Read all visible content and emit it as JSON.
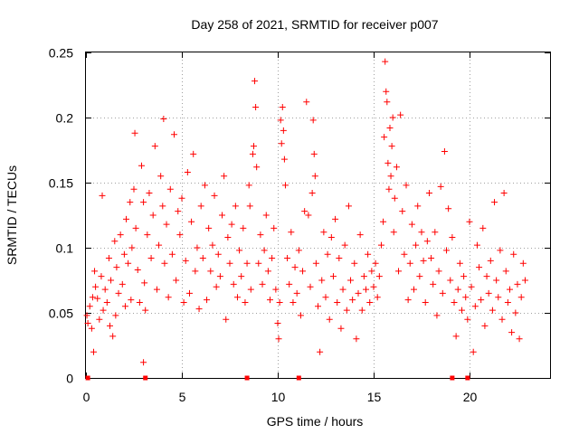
{
  "chart_data": {
    "type": "scatter",
    "title": "Day 258 of 2021, SRMTID for receiver p007",
    "xlabel": "GPS time / hours",
    "ylabel": "SRMTID / TECUs",
    "xlim": [
      0,
      24.2
    ],
    "ylim": [
      0,
      0.25
    ],
    "xticks": [
      0,
      5,
      10,
      15,
      20
    ],
    "xtick_labels": [
      "0",
      "5",
      "10",
      "15",
      "20"
    ],
    "yticks": [
      0,
      0.05,
      0.1,
      0.15,
      0.2,
      0.25
    ],
    "ytick_labels": [
      "0",
      "0.05",
      "0.1",
      "0.15",
      "0.2",
      "0.25"
    ],
    "grid": true,
    "marker": "plus",
    "color": "#ff0000",
    "series": [
      {
        "name": "SRMTID",
        "note": "dense scatter of 5-minute samples; representative points read from the plot",
        "points": [
          [
            0.05,
            0.048
          ],
          [
            0.1,
            0.042
          ],
          [
            0.2,
            0.055
          ],
          [
            0.3,
            0.038
          ],
          [
            0.35,
            0.062
          ],
          [
            0.4,
            0.02
          ],
          [
            0.45,
            0.082
          ],
          [
            0.5,
            0.07
          ],
          [
            0.6,
            0.061
          ],
          [
            0.7,
            0.045
          ],
          [
            0.8,
            0.078
          ],
          [
            0.85,
            0.14
          ],
          [
            0.9,
            0.052
          ],
          [
            1.0,
            0.068
          ],
          [
            1.1,
            0.058
          ],
          [
            1.2,
            0.092
          ],
          [
            1.25,
            0.04
          ],
          [
            1.3,
            0.075
          ],
          [
            1.4,
            0.032
          ],
          [
            1.5,
            0.105
          ],
          [
            1.55,
            0.048
          ],
          [
            1.6,
            0.085
          ],
          [
            1.7,
            0.065
          ],
          [
            1.8,
            0.11
          ],
          [
            1.9,
            0.072
          ],
          [
            2.0,
            0.095
          ],
          [
            2.05,
            0.055
          ],
          [
            2.1,
            0.122
          ],
          [
            2.2,
            0.088
          ],
          [
            2.3,
            0.135
          ],
          [
            2.35,
            0.06
          ],
          [
            2.4,
            0.1
          ],
          [
            2.5,
            0.145
          ],
          [
            2.55,
            0.188
          ],
          [
            2.6,
            0.115
          ],
          [
            2.7,
            0.083
          ],
          [
            2.8,
            0.058
          ],
          [
            2.9,
            0.163
          ],
          [
            3.0,
            0.135
          ],
          [
            3.0,
            0.012
          ],
          [
            3.05,
            0.073
          ],
          [
            3.1,
            0.052
          ],
          [
            3.2,
            0.11
          ],
          [
            3.3,
            0.142
          ],
          [
            3.4,
            0.092
          ],
          [
            3.5,
            0.125
          ],
          [
            3.6,
            0.178
          ],
          [
            3.7,
            0.068
          ],
          [
            3.8,
            0.102
          ],
          [
            3.9,
            0.155
          ],
          [
            4.0,
            0.132
          ],
          [
            4.05,
            0.199
          ],
          [
            4.1,
            0.088
          ],
          [
            4.2,
            0.118
          ],
          [
            4.3,
            0.062
          ],
          [
            4.4,
            0.145
          ],
          [
            4.5,
            0.095
          ],
          [
            4.6,
            0.187
          ],
          [
            4.7,
            0.075
          ],
          [
            4.8,
            0.128
          ],
          [
            4.9,
            0.11
          ],
          [
            5.0,
            0.138
          ],
          [
            5.1,
            0.058
          ],
          [
            5.2,
            0.09
          ],
          [
            5.3,
            0.158
          ],
          [
            5.4,
            0.065
          ],
          [
            5.5,
            0.12
          ],
          [
            5.6,
            0.172
          ],
          [
            5.7,
            0.082
          ],
          [
            5.8,
            0.1
          ],
          [
            5.9,
            0.053
          ],
          [
            6.0,
            0.132
          ],
          [
            6.1,
            0.092
          ],
          [
            6.2,
            0.148
          ],
          [
            6.3,
            0.06
          ],
          [
            6.4,
            0.115
          ],
          [
            6.5,
            0.082
          ],
          [
            6.6,
            0.102
          ],
          [
            6.7,
            0.14
          ],
          [
            6.8,
            0.07
          ],
          [
            6.9,
            0.095
          ],
          [
            7.0,
            0.078
          ],
          [
            7.1,
            0.125
          ],
          [
            7.2,
            0.155
          ],
          [
            7.3,
            0.045
          ],
          [
            7.4,
            0.108
          ],
          [
            7.5,
            0.088
          ],
          [
            7.6,
            0.118
          ],
          [
            7.7,
            0.072
          ],
          [
            7.8,
            0.132
          ],
          [
            7.9,
            0.062
          ],
          [
            8.0,
            0.098
          ],
          [
            8.1,
            0.078
          ],
          [
            8.2,
            0.115
          ],
          [
            8.3,
            0.058
          ],
          [
            8.4,
            0.088
          ],
          [
            8.5,
            0.148
          ],
          [
            8.55,
            0.132
          ],
          [
            8.6,
            0.068
          ],
          [
            8.7,
            0.172
          ],
          [
            8.75,
            0.178
          ],
          [
            8.8,
            0.228
          ],
          [
            8.85,
            0.208
          ],
          [
            8.9,
            0.162
          ],
          [
            9.0,
            0.088
          ],
          [
            9.1,
            0.11
          ],
          [
            9.2,
            0.072
          ],
          [
            9.3,
            0.098
          ],
          [
            9.4,
            0.125
          ],
          [
            9.5,
            0.082
          ],
          [
            9.6,
            0.06
          ],
          [
            9.7,
            0.092
          ],
          [
            9.8,
            0.115
          ],
          [
            9.9,
            0.068
          ],
          [
            10.0,
            0.042
          ],
          [
            10.05,
            0.03
          ],
          [
            10.1,
            0.058
          ],
          [
            10.15,
            0.198
          ],
          [
            10.2,
            0.18
          ],
          [
            10.25,
            0.208
          ],
          [
            10.3,
            0.19
          ],
          [
            10.35,
            0.168
          ],
          [
            10.4,
            0.148
          ],
          [
            10.5,
            0.092
          ],
          [
            10.6,
            0.072
          ],
          [
            10.7,
            0.112
          ],
          [
            10.8,
            0.058
          ],
          [
            10.9,
            0.085
          ],
          [
            11.0,
            0.065
          ],
          [
            11.1,
            0.098
          ],
          [
            11.2,
            0.048
          ],
          [
            11.3,
            0.082
          ],
          [
            11.4,
            0.128
          ],
          [
            11.5,
            0.212
          ],
          [
            11.6,
            0.125
          ],
          [
            11.7,
            0.07
          ],
          [
            11.8,
            0.142
          ],
          [
            11.85,
            0.198
          ],
          [
            11.9,
            0.172
          ],
          [
            11.95,
            0.155
          ],
          [
            12.0,
            0.088
          ],
          [
            12.1,
            0.055
          ],
          [
            12.2,
            0.02
          ],
          [
            12.3,
            0.075
          ],
          [
            12.4,
            0.112
          ],
          [
            12.5,
            0.062
          ],
          [
            12.6,
            0.095
          ],
          [
            12.7,
            0.045
          ],
          [
            12.8,
            0.108
          ],
          [
            12.9,
            0.078
          ],
          [
            13.0,
            0.122
          ],
          [
            13.1,
            0.058
          ],
          [
            13.2,
            0.092
          ],
          [
            13.3,
            0.038
          ],
          [
            13.4,
            0.068
          ],
          [
            13.5,
            0.102
          ],
          [
            13.6,
            0.052
          ],
          [
            13.7,
            0.132
          ],
          [
            13.8,
            0.075
          ],
          [
            13.9,
            0.06
          ],
          [
            14.0,
            0.088
          ],
          [
            14.1,
            0.03
          ],
          [
            14.2,
            0.065
          ],
          [
            14.3,
            0.11
          ],
          [
            14.4,
            0.052
          ],
          [
            14.5,
            0.078
          ],
          [
            14.6,
            0.068
          ],
          [
            14.7,
            0.095
          ],
          [
            14.8,
            0.058
          ],
          [
            14.9,
            0.082
          ],
          [
            15.0,
            0.07
          ],
          [
            15.1,
            0.088
          ],
          [
            15.2,
            0.062
          ],
          [
            15.3,
            0.078
          ],
          [
            15.4,
            0.102
          ],
          [
            15.5,
            0.12
          ],
          [
            15.55,
            0.185
          ],
          [
            15.6,
            0.243
          ],
          [
            15.65,
            0.22
          ],
          [
            15.7,
            0.212
          ],
          [
            15.75,
            0.165
          ],
          [
            15.8,
            0.145
          ],
          [
            15.85,
            0.192
          ],
          [
            15.9,
            0.155
          ],
          [
            15.95,
            0.178
          ],
          [
            16.0,
            0.2
          ],
          [
            16.05,
            0.112
          ],
          [
            16.1,
            0.138
          ],
          [
            16.2,
            0.162
          ],
          [
            16.3,
            0.082
          ],
          [
            16.4,
            0.202
          ],
          [
            16.5,
            0.128
          ],
          [
            16.6,
            0.095
          ],
          [
            16.7,
            0.148
          ],
          [
            16.8,
            0.06
          ],
          [
            16.9,
            0.088
          ],
          [
            17.0,
            0.118
          ],
          [
            17.1,
            0.068
          ],
          [
            17.2,
            0.102
          ],
          [
            17.3,
            0.132
          ],
          [
            17.4,
            0.078
          ],
          [
            17.5,
            0.112
          ],
          [
            17.6,
            0.09
          ],
          [
            17.7,
            0.058
          ],
          [
            17.8,
            0.105
          ],
          [
            17.9,
            0.142
          ],
          [
            18.0,
            0.092
          ],
          [
            18.1,
            0.072
          ],
          [
            18.2,
            0.112
          ],
          [
            18.3,
            0.048
          ],
          [
            18.4,
            0.082
          ],
          [
            18.5,
            0.147
          ],
          [
            18.6,
            0.065
          ],
          [
            18.7,
            0.174
          ],
          [
            18.8,
            0.098
          ],
          [
            18.9,
            0.13
          ],
          [
            19.0,
            0.075
          ],
          [
            19.1,
            0.108
          ],
          [
            19.2,
            0.058
          ],
          [
            19.3,
            0.032
          ],
          [
            19.4,
            0.068
          ],
          [
            19.5,
            0.088
          ],
          [
            19.6,
            0.052
          ],
          [
            19.7,
            0.078
          ],
          [
            19.8,
            0.062
          ],
          [
            19.9,
            0.045
          ],
          [
            20.0,
            0.12
          ],
          [
            20.1,
            0.07
          ],
          [
            20.2,
            0.02
          ],
          [
            20.3,
            0.055
          ],
          [
            20.4,
            0.102
          ],
          [
            20.5,
            0.085
          ],
          [
            20.6,
            0.06
          ],
          [
            20.7,
            0.115
          ],
          [
            20.8,
            0.04
          ],
          [
            20.9,
            0.078
          ],
          [
            21.0,
            0.065
          ],
          [
            21.1,
            0.09
          ],
          [
            21.2,
            0.052
          ],
          [
            21.3,
            0.135
          ],
          [
            21.4,
            0.075
          ],
          [
            21.5,
            0.062
          ],
          [
            21.6,
            0.098
          ],
          [
            21.7,
            0.045
          ],
          [
            21.8,
            0.142
          ],
          [
            21.9,
            0.082
          ],
          [
            22.0,
            0.058
          ],
          [
            22.1,
            0.068
          ],
          [
            22.2,
            0.035
          ],
          [
            22.3,
            0.095
          ],
          [
            22.4,
            0.05
          ],
          [
            22.5,
            0.072
          ],
          [
            22.6,
            0.03
          ],
          [
            22.7,
            0.062
          ],
          [
            22.8,
            0.088
          ],
          [
            22.9,
            0.075
          ]
        ]
      }
    ],
    "zero_markers": [
      0.1,
      3.1,
      8.4,
      11.1,
      19.1,
      19.9
    ]
  }
}
